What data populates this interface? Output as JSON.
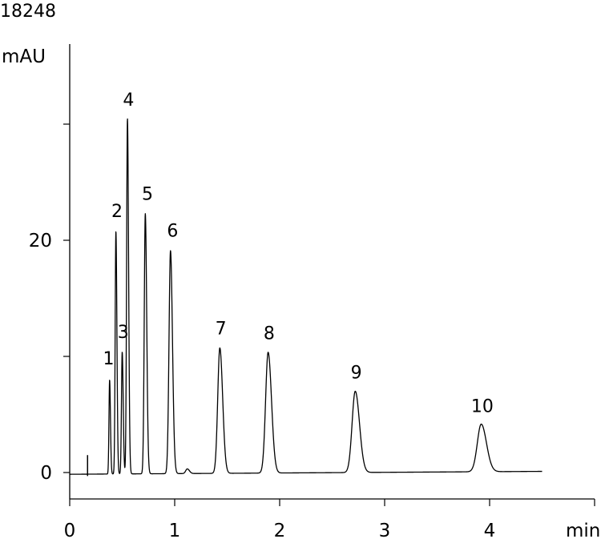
{
  "figure_id": "18248",
  "chart_data": {
    "type": "line",
    "title": "",
    "xlabel": "min",
    "ylabel": "mAU",
    "xlim": [
      0,
      5
    ],
    "ylim": [
      -2.2,
      33
    ],
    "x_ticks": [
      0,
      1,
      2,
      3,
      4
    ],
    "y_ticks": [
      0,
      10,
      20,
      30
    ],
    "y_tick_labels": [
      "0",
      "",
      "20",
      ""
    ],
    "grid": false,
    "color": "#000000",
    "baseline": {
      "start_x": 0.0,
      "end_x": 4.5,
      "start_y": -0.15,
      "end_y": 0.1
    },
    "injection_spike": {
      "x": 0.17,
      "y_min": -0.3,
      "y_max": 1.5
    },
    "series": [
      {
        "peaks": [
          {
            "label": "1",
            "x": 0.38,
            "height": 8.1,
            "width": 0.006
          },
          {
            "label": "2",
            "x": 0.44,
            "height": 20.9,
            "width": 0.007
          },
          {
            "label": "3",
            "x": 0.5,
            "height": 10.5,
            "width": 0.007
          },
          {
            "label": "4",
            "x": 0.55,
            "height": 30.6,
            "width": 0.008
          },
          {
            "label": "5",
            "x": 0.72,
            "height": 22.4,
            "width": 0.01
          },
          {
            "label": "6",
            "x": 0.96,
            "height": 19.2,
            "width": 0.014
          },
          {
            "label": "small",
            "x": 1.12,
            "height": 0.4,
            "width": 0.015
          },
          {
            "label": "7",
            "x": 1.43,
            "height": 10.8,
            "width": 0.02
          },
          {
            "label": "8",
            "x": 1.89,
            "height": 10.4,
            "width": 0.024
          },
          {
            "label": "9",
            "x": 2.72,
            "height": 7.0,
            "width": 0.03
          },
          {
            "label": "10",
            "x": 3.92,
            "height": 4.1,
            "width": 0.037
          }
        ]
      }
    ],
    "peak_labels": [
      {
        "text": "1",
        "x": 0.37,
        "y": 9.3
      },
      {
        "text": "2",
        "x": 0.45,
        "height_ref": 1,
        "y": 22.0
      },
      {
        "text": "3",
        "x": 0.51,
        "y": 11.6
      },
      {
        "text": "4",
        "x": 0.56,
        "y": 31.6
      },
      {
        "text": "5",
        "x": 0.74,
        "y": 23.5
      },
      {
        "text": "6",
        "x": 0.98,
        "y": 20.3
      },
      {
        "text": "7",
        "x": 1.44,
        "y": 11.9
      },
      {
        "text": "8",
        "x": 1.9,
        "y": 11.5
      },
      {
        "text": "9",
        "x": 2.73,
        "y": 8.1
      },
      {
        "text": "10",
        "x": 3.93,
        "y": 5.2
      }
    ]
  }
}
